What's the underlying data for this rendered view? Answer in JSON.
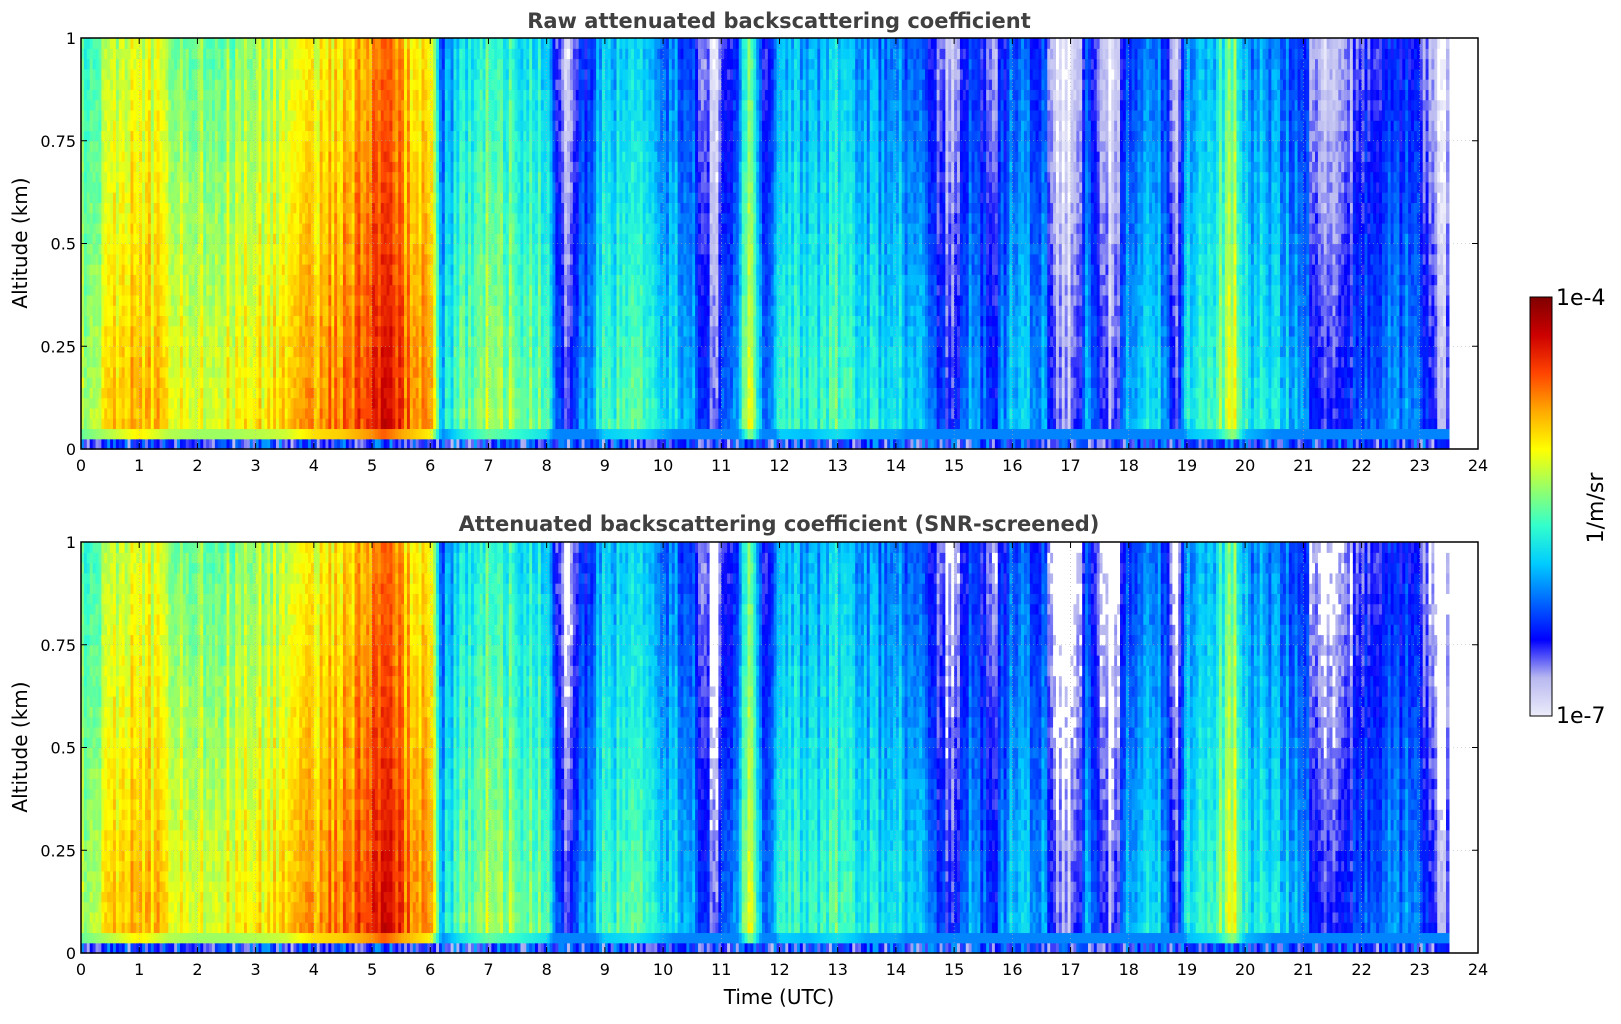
{
  "chart_data": [
    {
      "type": "heatmap",
      "title": "Raw attenuated backscattering coefficient",
      "xlabel": "",
      "ylabel": "Altitude (km)",
      "xlim": [
        0,
        24
      ],
      "ylim": [
        0,
        1
      ],
      "x_ticks": [
        "0",
        "1",
        "2",
        "3",
        "4",
        "5",
        "6",
        "7",
        "8",
        "9",
        "10",
        "11",
        "12",
        "13",
        "14",
        "15",
        "16",
        "17",
        "18",
        "19",
        "20",
        "21",
        "22",
        "23",
        "24"
      ],
      "y_ticks": [
        "0",
        "0.25",
        "0.5",
        "0.75",
        "1"
      ],
      "data_end_hour": 23.5,
      "screened": false
    },
    {
      "type": "heatmap",
      "title": "Attenuated backscattering coefficient (SNR-screened)",
      "xlabel": "Time (UTC)",
      "ylabel": "Altitude (km)",
      "xlim": [
        0,
        24
      ],
      "ylim": [
        0,
        1
      ],
      "x_ticks": [
        "0",
        "1",
        "2",
        "3",
        "4",
        "5",
        "6",
        "7",
        "8",
        "9",
        "10",
        "11",
        "12",
        "13",
        "14",
        "15",
        "16",
        "17",
        "18",
        "19",
        "20",
        "21",
        "22",
        "23",
        "24"
      ],
      "y_ticks": [
        "0",
        "0.25",
        "0.5",
        "0.75",
        "1"
      ],
      "data_end_hour": 23.5,
      "screened": true
    }
  ],
  "colorbar": {
    "label": "1/m/sr",
    "max_label": "1e-4",
    "min_label": "1e-7",
    "scale": "log",
    "range": [
      1e-07,
      0.0001
    ]
  },
  "colormap": [
    "#ececfa",
    "#b8b8f0",
    "#0000ff",
    "#0066ff",
    "#00ccff",
    "#33ffcc",
    "#99ff66",
    "#ffff00",
    "#ffaa00",
    "#ff4400",
    "#cc0000",
    "#800000"
  ],
  "profile": {
    "hours": [
      0,
      0.5,
      1,
      1.5,
      2,
      2.5,
      3,
      3.5,
      4,
      4.5,
      5,
      5.2,
      5.5,
      6,
      6.2,
      6.5,
      7,
      7.5,
      8,
      8.3,
      8.6,
      9,
      9.5,
      10,
      10.5,
      10.9,
      11.3,
      11.5,
      11.8,
      12,
      12.5,
      13,
      13.5,
      14,
      14.5,
      15,
      15.3,
      15.7,
      16,
      16.5,
      16.8,
      17,
      17.3,
      17.5,
      17.7,
      18,
      18.5,
      18.8,
      19,
      19.5,
      19.8,
      20,
      20.5,
      21,
      21.3,
      21.7,
      22,
      22.5,
      23,
      23.3,
      23.5
    ],
    "log_value": [
      0.55,
      0.62,
      0.7,
      0.62,
      0.6,
      0.6,
      0.62,
      0.64,
      0.72,
      0.74,
      0.8,
      0.85,
      0.78,
      0.7,
      0.35,
      0.45,
      0.55,
      0.5,
      0.45,
      0.15,
      0.25,
      0.42,
      0.45,
      0.38,
      0.3,
      0.12,
      0.35,
      0.6,
      0.2,
      0.42,
      0.4,
      0.45,
      0.38,
      0.38,
      0.3,
      0.12,
      0.3,
      0.2,
      0.35,
      0.3,
      0.1,
      0.05,
      0.3,
      0.15,
      0.05,
      0.35,
      0.35,
      0.12,
      0.4,
      0.45,
      0.6,
      0.4,
      0.35,
      0.3,
      0.1,
      0.15,
      0.22,
      0.3,
      0.25,
      0.08,
      0.1
    ]
  }
}
